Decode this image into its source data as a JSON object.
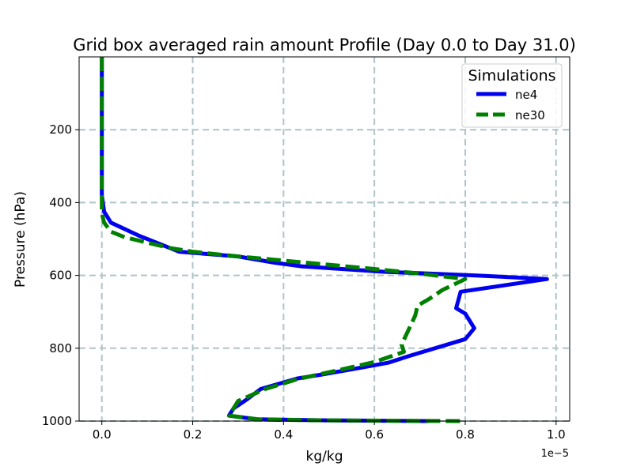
{
  "chart_data": {
    "type": "line",
    "title": "Grid box averaged rain amount Profile (Day 0.0 to Day 31.0)",
    "xlabel": "kg/kg",
    "ylabel": "Pressure (hPa)",
    "x_offset_label": "1e−5",
    "x_scale": 1e-05,
    "xlim": [
      -0.05,
      1.03
    ],
    "ylim": [
      1000,
      0
    ],
    "y_inverted": true,
    "grid": true,
    "x_ticks": [
      0.0,
      0.2,
      0.4,
      0.6,
      0.8,
      1.0
    ],
    "x_tick_labels": [
      "0.0",
      "0.2",
      "0.4",
      "0.6",
      "0.8",
      "1.0"
    ],
    "y_ticks": [
      200,
      400,
      600,
      800,
      1000
    ],
    "y_tick_labels": [
      "200",
      "400",
      "600",
      "800",
      "1000"
    ],
    "legend": {
      "title": "Simulations",
      "position": "top-right"
    },
    "series": [
      {
        "name": "ne4",
        "color": "#0000ee",
        "style": "solid",
        "points": [
          [
            0.0,
            0
          ],
          [
            0.0,
            100
          ],
          [
            0.0,
            200
          ],
          [
            0.0,
            300
          ],
          [
            0.0,
            380
          ],
          [
            0.005,
            425
          ],
          [
            0.02,
            455
          ],
          [
            0.08,
            490
          ],
          [
            0.17,
            535
          ],
          [
            0.3,
            548
          ],
          [
            0.38,
            565
          ],
          [
            0.44,
            575
          ],
          [
            0.62,
            590
          ],
          [
            0.82,
            600
          ],
          [
            0.98,
            610
          ],
          [
            0.79,
            645
          ],
          [
            0.78,
            690
          ],
          [
            0.8,
            705
          ],
          [
            0.82,
            745
          ],
          [
            0.8,
            775
          ],
          [
            0.68,
            820
          ],
          [
            0.63,
            840
          ],
          [
            0.55,
            858
          ],
          [
            0.48,
            873
          ],
          [
            0.43,
            883
          ],
          [
            0.35,
            912
          ],
          [
            0.32,
            940
          ],
          [
            0.29,
            965
          ],
          [
            0.28,
            985
          ],
          [
            0.34,
            995
          ],
          [
            0.5,
            998
          ],
          [
            0.72,
            1000
          ]
        ]
      },
      {
        "name": "ne30",
        "color": "#008000",
        "style": "dashed",
        "points": [
          [
            0.0,
            0
          ],
          [
            0.0,
            100
          ],
          [
            0.0,
            200
          ],
          [
            0.0,
            300
          ],
          [
            0.0,
            390
          ],
          [
            0.0,
            430
          ],
          [
            0.005,
            455
          ],
          [
            0.02,
            480
          ],
          [
            0.05,
            495
          ],
          [
            0.1,
            510
          ],
          [
            0.15,
            525
          ],
          [
            0.2,
            535
          ],
          [
            0.3,
            548
          ],
          [
            0.45,
            565
          ],
          [
            0.58,
            580
          ],
          [
            0.7,
            595
          ],
          [
            0.8,
            610
          ],
          [
            0.75,
            640
          ],
          [
            0.72,
            665
          ],
          [
            0.695,
            683
          ],
          [
            0.69,
            710
          ],
          [
            0.675,
            750
          ],
          [
            0.66,
            790
          ],
          [
            0.665,
            810
          ],
          [
            0.6,
            838
          ],
          [
            0.5,
            866
          ],
          [
            0.43,
            885
          ],
          [
            0.36,
            912
          ],
          [
            0.3,
            945
          ],
          [
            0.28,
            985
          ],
          [
            0.35,
            996
          ],
          [
            0.5,
            998
          ],
          [
            0.8,
            1000
          ]
        ]
      }
    ]
  }
}
